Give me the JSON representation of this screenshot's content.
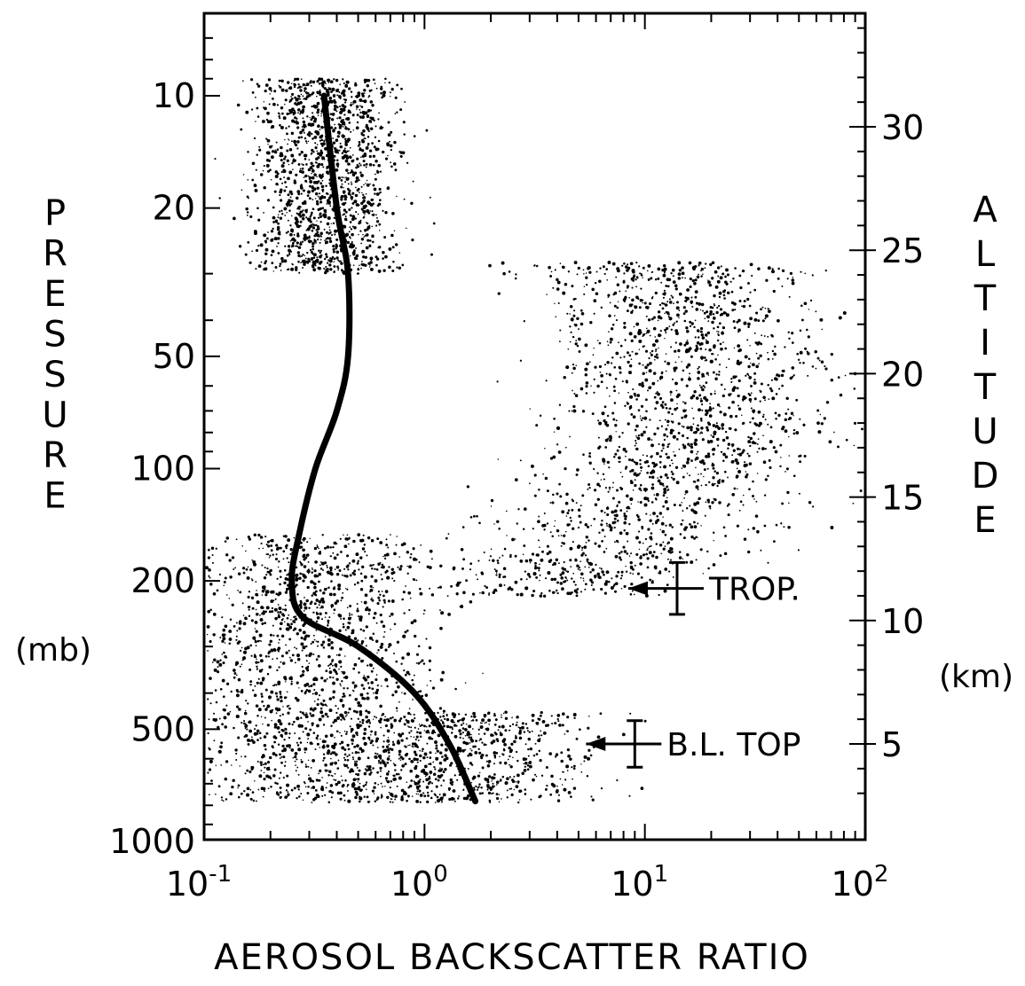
{
  "chart_data": {
    "type": "scatter",
    "title": "",
    "xlabel": "AEROSOL BACKSCATTER RATIO",
    "ylabel_left": "PRESSURE",
    "ylabel_left_unit": "(mb)",
    "ylabel_right": "ALTITUDE",
    "ylabel_right_unit": "(km)",
    "x_scale": "log",
    "xlim": [
      0.1,
      100
    ],
    "x_ticks": [
      {
        "value": 0.1,
        "base": "10",
        "exp": "-1"
      },
      {
        "value": 1,
        "base": "10",
        "exp": "0"
      },
      {
        "value": 10,
        "base": "10",
        "exp": "1"
      },
      {
        "value": 100,
        "base": "10",
        "exp": "2"
      }
    ],
    "y_left_scale": "log",
    "ylim_left": [
      5,
      1050
    ],
    "y_left_ticks": [
      {
        "value": 10,
        "label": "10"
      },
      {
        "value": 20,
        "label": "20"
      },
      {
        "value": 50,
        "label": "50"
      },
      {
        "value": 100,
        "label": "100"
      },
      {
        "value": 200,
        "label": "200"
      },
      {
        "value": 500,
        "label": "500"
      },
      {
        "value": 1000,
        "label": "1000"
      }
    ],
    "y_right_ticks": [
      {
        "value": 30,
        "label": "30"
      },
      {
        "value": 25,
        "label": "25"
      },
      {
        "value": 20,
        "label": "20"
      },
      {
        "value": 15,
        "label": "15"
      },
      {
        "value": 10,
        "label": "10"
      },
      {
        "value": 5,
        "label": "5"
      }
    ],
    "mean_profile": {
      "x": [
        0.35,
        0.4,
        0.45,
        0.45,
        0.4,
        0.32,
        0.27,
        0.25,
        0.28,
        0.5,
        0.9,
        1.3,
        1.7
      ],
      "y": [
        10,
        20,
        30,
        50,
        70,
        100,
        150,
        200,
        250,
        300,
        400,
        550,
        780
      ]
    },
    "scatter_clusters": [
      {
        "name": "upper",
        "x_center": 0.36,
        "x_spread": 0.16,
        "p_min": 9,
        "p_max": 30,
        "density": 1500
      },
      {
        "name": "lower",
        "x_center": 0.3,
        "x_spread": 0.3,
        "p_min": 150,
        "p_max": 800,
        "density": 2400
      },
      {
        "name": "bl",
        "x_center": 1.5,
        "x_spread": 0.3,
        "p_min": 450,
        "p_max": 800,
        "density": 800
      },
      {
        "name": "plume",
        "x_center": 5.0,
        "x_spread": 0.32,
        "p_min": 28,
        "p_max": 220,
        "density": 2300
      }
    ],
    "annotations": [
      {
        "label": "TROP.",
        "x": 14,
        "y_altitude_km": 11.3,
        "err_km": 1.0
      },
      {
        "label": "B.L. TOP",
        "x": 9,
        "y_altitude_km": 5.0,
        "err_km": 0.9
      }
    ]
  }
}
